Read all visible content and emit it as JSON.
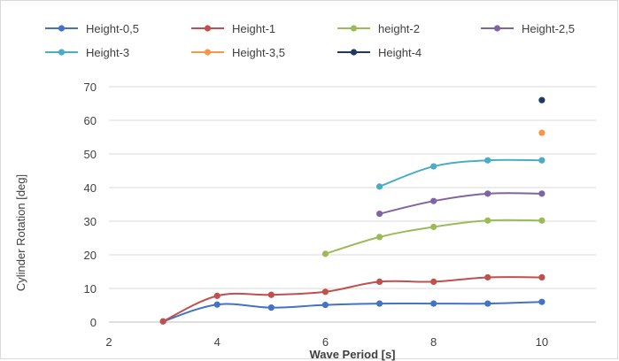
{
  "chart_data": {
    "type": "line",
    "xlabel": "Wave Period [s]",
    "ylabel": "Cylinder Rotation [deg]",
    "xlim": [
      2,
      11
    ],
    "ylim": [
      0,
      70
    ],
    "x_ticks": [
      2,
      4,
      6,
      8,
      10
    ],
    "y_ticks": [
      0,
      10,
      20,
      30,
      40,
      50,
      60,
      70
    ],
    "grid": "horizontal",
    "legend_position": "top",
    "smooth": true,
    "series": [
      {
        "name": "Height-0,5",
        "color": "#4472c4",
        "x": [
          3,
          4,
          5,
          6,
          7,
          8,
          9,
          10
        ],
        "y": [
          0.2,
          5.2,
          4.3,
          5.1,
          5.5,
          5.5,
          5.5,
          6.0
        ]
      },
      {
        "name": "Height-1",
        "color": "#c0504d",
        "x": [
          3,
          4,
          5,
          6,
          7,
          8,
          9,
          10
        ],
        "y": [
          0.2,
          7.8,
          8.1,
          9.0,
          12.0,
          12.0,
          13.3,
          13.3
        ]
      },
      {
        "name": "height-2",
        "color": "#9bbb59",
        "x": [
          6,
          7,
          8,
          9,
          10
        ],
        "y": [
          20.3,
          25.3,
          28.3,
          30.2,
          30.2
        ]
      },
      {
        "name": "Height-2,5",
        "color": "#8064a2",
        "x": [
          7,
          8,
          9,
          10
        ],
        "y": [
          32.2,
          36.0,
          38.2,
          38.2
        ]
      },
      {
        "name": "Height-3",
        "color": "#4bacc6",
        "x": [
          7,
          8,
          9,
          10
        ],
        "y": [
          40.3,
          46.3,
          48.1,
          48.1
        ]
      },
      {
        "name": "Height-3,5",
        "color": "#f79646",
        "x": [
          10
        ],
        "y": [
          56.3
        ]
      },
      {
        "name": "Height-4",
        "color": "#1f3864",
        "x": [
          10
        ],
        "y": [
          66.0
        ]
      }
    ]
  }
}
